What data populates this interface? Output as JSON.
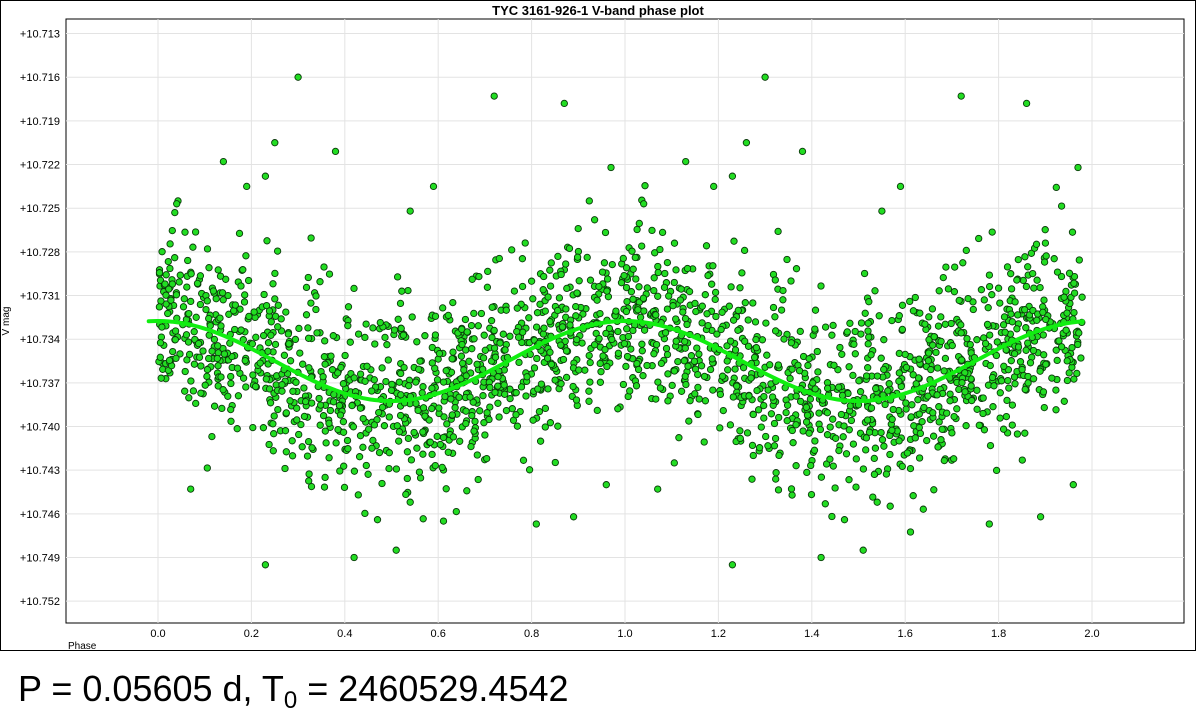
{
  "chart_data": {
    "type": "scatter",
    "title": "TYC 3161-926-1 V-band phase plot",
    "xlabel": "Phase",
    "ylabel": "V mag",
    "xlim": [
      -0.2,
      2.2
    ],
    "ylim": [
      -10.7535,
      -10.712
    ],
    "y_inverted": true,
    "x_ticks": [
      "0.0",
      "0.2",
      "0.4",
      "0.6",
      "0.8",
      "1.0",
      "1.2",
      "1.4",
      "1.6",
      "1.8",
      "2.0"
    ],
    "y_ticks": [
      "+10.713",
      "+10.716",
      "+10.719",
      "+10.722",
      "+10.725",
      "+10.728",
      "+10.731",
      "+10.734",
      "+10.737",
      "+10.740",
      "+10.743",
      "+10.746",
      "+10.749",
      "+10.752"
    ],
    "grid": true,
    "marker_color": "#22dd22",
    "marker_edge_color": "#0a3a0a",
    "fit_color": "#11ee11",
    "fit": {
      "model": "sinusoid",
      "mean_mag": 10.7355,
      "amplitude_mag": 0.00275,
      "phase_of_min_brightness": 0.5,
      "x_range": [
        -0.02,
        1.98
      ]
    },
    "series": [
      {
        "points": [
          [
            0.3,
            10.716
          ],
          [
            0.72,
            10.7173
          ],
          [
            0.87,
            10.7178
          ],
          [
            1.3,
            10.716
          ],
          [
            1.72,
            10.7173
          ],
          [
            1.86,
            10.7178
          ],
          [
            0.25,
            10.7205
          ],
          [
            0.38,
            10.7211
          ],
          [
            0.14,
            10.7218
          ],
          [
            1.13,
            10.7218
          ],
          [
            1.26,
            10.7205
          ],
          [
            1.38,
            10.7211
          ],
          [
            0.97,
            10.7222
          ],
          [
            1.97,
            10.7222
          ],
          [
            0.23,
            10.7228
          ],
          [
            1.23,
            10.7228
          ],
          [
            0.19,
            10.7235
          ],
          [
            0.59,
            10.7235
          ],
          [
            1.59,
            10.7235
          ],
          [
            1.19,
            10.7235
          ],
          [
            0.54,
            10.7252
          ],
          [
            1.55,
            10.7252
          ],
          [
            0.04,
            10.7247
          ],
          [
            1.04,
            10.7247
          ],
          [
            0.23,
            10.7495
          ],
          [
            1.23,
            10.7495
          ],
          [
            0.42,
            10.749
          ],
          [
            1.42,
            10.749
          ],
          [
            0.51,
            10.7485
          ],
          [
            1.51,
            10.7485
          ],
          [
            0.81,
            10.7467
          ],
          [
            0.89,
            10.7462
          ],
          [
            1.89,
            10.7462
          ],
          [
            1.78,
            10.7467
          ],
          [
            0.07,
            10.7443
          ],
          [
            1.07,
            10.7443
          ],
          [
            0.96,
            10.744
          ],
          [
            1.96,
            10.744
          ],
          [
            0.54,
            10.7452
          ],
          [
            1.54,
            10.7452
          ],
          [
            0.47,
            10.7464
          ],
          [
            1.47,
            10.7464
          ]
        ]
      }
    ]
  },
  "footer": {
    "period_prefix": "P = 0.05605 d, T",
    "t0_subscript": "0",
    "t0_value": " = 2460529.4542"
  }
}
